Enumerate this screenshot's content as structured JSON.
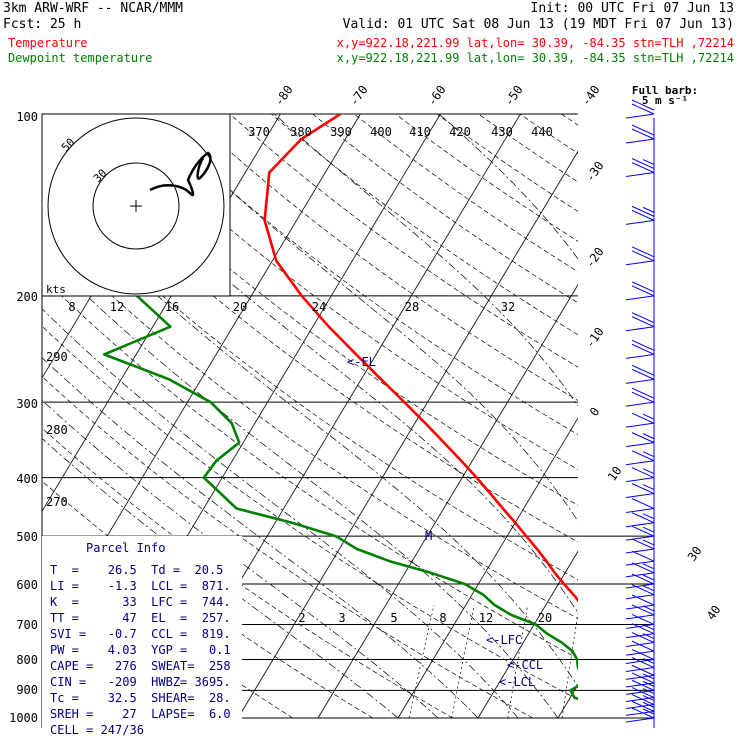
{
  "header": {
    "model": "3km ARW-WRF -- NCAR/MMM",
    "init": "Init: 00 UTC Fri 07 Jun 13",
    "fcst": "Fcst:   25 h",
    "valid": "Valid: 01 UTC Sat 08 Jun 13 (19 MDT Fri 07 Jun 13)",
    "temp_label": "Temperature",
    "temp_loc": "x,y=922.18,221.99   lat,lon= 30.39, -84.35  stn=TLH ,72214",
    "dew_label": "Dewpoint temperature",
    "dew_loc": "x,y=922.18,221.99   lat,lon= 30.39, -84.35  stn=TLH ,72214"
  },
  "colors": {
    "temperature": "#ff0000",
    "dewpoint": "#008000",
    "parcel_text": "#000080",
    "wind_barbs": "#0000ff",
    "grid": "#000000"
  },
  "barb_key": {
    "line1": "Full barb:",
    "line2": "5 m s⁻¹"
  },
  "hodograph": {
    "unit_label": "kts",
    "ring_labels": [
      "50",
      "30"
    ]
  },
  "theta_labels": [
    "370",
    "380",
    "390",
    "400",
    "410",
    "420",
    "430",
    "440"
  ],
  "lower_theta_labels": [
    "290",
    "280",
    "270"
  ],
  "upper_temp_labels": [
    "8",
    "12",
    "16",
    "20",
    "24",
    "28",
    "32"
  ],
  "mixing_labels": [
    "2",
    "3",
    "5",
    "8",
    "12",
    "20"
  ],
  "skew_temp_labels": [
    "-80",
    "-70",
    "-60",
    "-50",
    "-40",
    "-30",
    "-20",
    "-10",
    "0",
    "10",
    "30",
    "40"
  ],
  "pressure_labels": [
    "100",
    "200",
    "300",
    "400",
    "500",
    "600",
    "700",
    "800",
    "900",
    "1000"
  ],
  "level_markers": [
    "<-EL",
    "M",
    "<-LFC",
    "<-CCL",
    "<-LCL"
  ],
  "parcel_info": {
    "title": "Parcel Info",
    "rows": [
      "T  =    26.5  Td =  20.5",
      "LI =    -1.3  LCL =  871.",
      "K  =      33  LFC =  744.",
      "TT =      47  EL  =  257.",
      "SVI =   -0.7  CCL =  819.",
      "PW =    4.03  YGP =   0.1",
      "CAPE =   276  SWEAT=  258",
      "CIN =   -209  HWBZ= 3695.",
      "Tc =    32.5  SHEAR=  28.",
      "SREH =    27  LAPSE=  6.0",
      "CELL = 247/36"
    ]
  },
  "chart_data": {
    "type": "line",
    "title": "",
    "xlabel": "",
    "ylabel": "",
    "y_scale": "log pressure",
    "ylim": [
      1000,
      100
    ],
    "isobars_hpa": [
      100,
      200,
      300,
      400,
      500,
      600,
      700,
      800,
      900,
      1000
    ],
    "series": [
      {
        "name": "Temperature",
        "p": [
          1000,
          975,
          950,
          925,
          900,
          875,
          850,
          825,
          800,
          775,
          750,
          725,
          700,
          675,
          650,
          625,
          600,
          575,
          550,
          525,
          500,
          475,
          450,
          425,
          400,
          375,
          350,
          325,
          300,
          275,
          250,
          225,
          200,
          175,
          150,
          125,
          110,
          100
        ],
        "t": [
          26.5,
          24.5,
          22.7,
          21.0,
          19.5,
          18.3,
          17.0,
          15.6,
          14.1,
          12.6,
          11.1,
          9.5,
          7.8,
          6.1,
          4.5,
          2.7,
          0.7,
          -1.3,
          -3.2,
          -5.3,
          -7.6,
          -10.0,
          -12.6,
          -15.3,
          -18.2,
          -21.4,
          -24.9,
          -28.7,
          -32.9,
          -37.5,
          -42.5,
          -48.0,
          -53.7,
          -59.5,
          -64.0,
          -67.0,
          -65.5,
          -62.5
        ]
      },
      {
        "name": "Dewpoint temperature",
        "p": [
          1000,
          975,
          950,
          925,
          900,
          875,
          850,
          825,
          800,
          775,
          750,
          725,
          700,
          675,
          650,
          625,
          600,
          575,
          550,
          525,
          500,
          475,
          450,
          425,
          400,
          375,
          350,
          325,
          300,
          275,
          250,
          225,
          200,
          175,
          150,
          125,
          110,
          100
        ],
        "t": [
          20.5,
          17.5,
          13.5,
          10.5,
          9.5,
          10.5,
          9.8,
          8.7,
          8.0,
          6.8,
          4.8,
          2.3,
          0.2,
          -3.6,
          -6.4,
          -8.6,
          -11.7,
          -16.8,
          -22.8,
          -27.8,
          -31.4,
          -37.9,
          -45.9,
          -49.0,
          -52.3,
          -52.0,
          -50.5,
          -52.9,
          -57.1,
          -64.0,
          -74.0,
          -67.8,
          -74.3,
          -81.6,
          -83.5,
          -84.5,
          -82.0,
          -77.0
        ]
      }
    ],
    "wind_barbs_kts": [
      15,
      15,
      15,
      15,
      15,
      15,
      10,
      15,
      10,
      10,
      15,
      15,
      10,
      15,
      10,
      15,
      15,
      15,
      10,
      15,
      15,
      15,
      10,
      15,
      15,
      15,
      15,
      15,
      20,
      20,
      20,
      20,
      20,
      20,
      25,
      25,
      20,
      20
    ]
  }
}
